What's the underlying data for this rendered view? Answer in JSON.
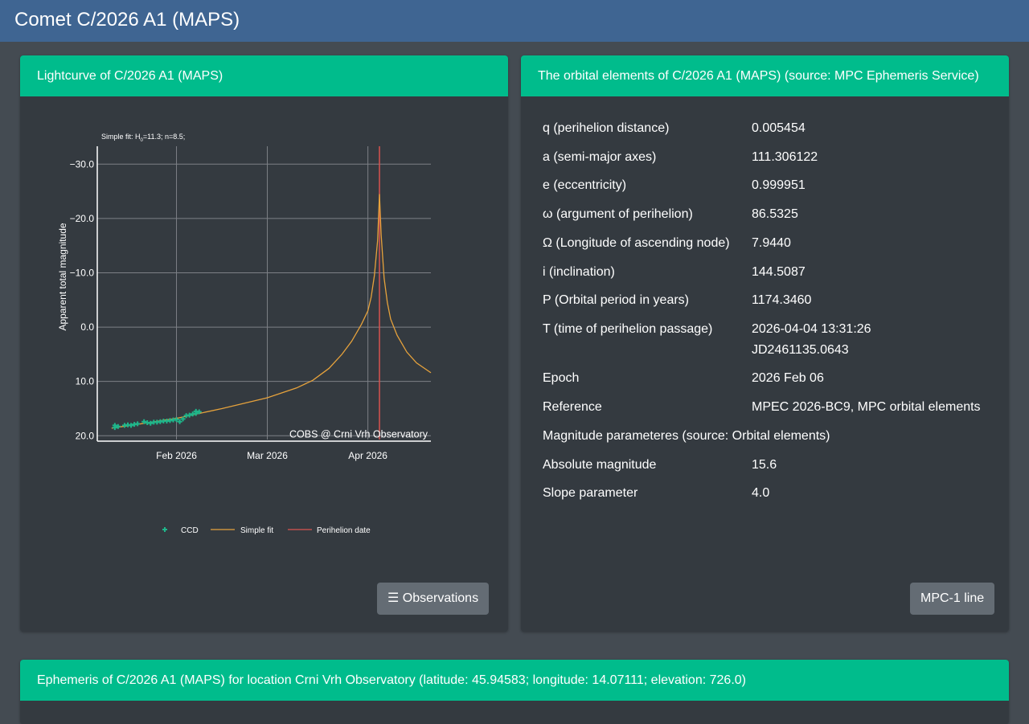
{
  "page_title": "Comet C/2026 A1 (MAPS)",
  "lightcurve": {
    "header": "Lightcurve of C/2026 A1 (MAPS)",
    "button_label": "Observations",
    "button_icon": "list-icon"
  },
  "orbital": {
    "header": "The orbital elements of C/2026 A1 (MAPS) (source: MPC Ephemeris Service)",
    "rows": [
      {
        "label": "q (perihelion distance)",
        "value": "0.005454"
      },
      {
        "label": "a (semi-major axes)",
        "value": "111.306122"
      },
      {
        "label": "e (eccentricity)",
        "value": "0.999951"
      },
      {
        "label": "ω (argument of perihelion)",
        "value": "86.5325"
      },
      {
        "label": "Ω (Longitude of ascending node)",
        "value": "7.9440"
      },
      {
        "label": "i (inclination)",
        "value": "144.5087"
      },
      {
        "label": "P (Orbital period in years)",
        "value": "1174.3460"
      },
      {
        "label": "T (time of perihelion passage)",
        "value": "2026-04-04 13:31:26",
        "value2": "JD2461135.0643"
      },
      {
        "label": "Epoch",
        "value": "2026 Feb 06"
      },
      {
        "label": "Reference",
        "value": "MPEC 2026-BC9, MPC orbital elements"
      },
      {
        "label": "Magnitude parameteres (source: Orbital elements)",
        "value": ""
      },
      {
        "label": "Absolute magnitude",
        "value": "15.6"
      },
      {
        "label": "Slope parameter",
        "value": "4.0"
      }
    ],
    "button_label": "MPC-1 line"
  },
  "ephemeris": {
    "header": "Ephemeris of C/2026 A1 (MAPS) for location Crni Vrh Observatory (latitude: 45.94583; longitude: 14.07111; elevation: 726.0)"
  },
  "chart_data": {
    "type": "scatter",
    "title_prefix": "Simple fit: H",
    "title_sub": "0",
    "title_suffix": "=11.3; n=8.5;",
    "ylabel": "Apparent total magnitude",
    "xlabel": "",
    "ylim": [
      20.7,
      -33.3
    ],
    "y_reversed": true,
    "xlim": [
      "2026-01-07T14:00",
      "2026-04-20T10:00"
    ],
    "yticks": [
      -30,
      -20,
      -10,
      0,
      10,
      20
    ],
    "ytick_labels": [
      "−30.0",
      "−20.0",
      "−10.0",
      "0.0",
      "10.0",
      "20.0"
    ],
    "xticks": [
      "2026-02-01",
      "2026-03-01",
      "2026-04-01"
    ],
    "xtick_labels": [
      "Feb 2026",
      "Mar 2026",
      "Apr 2026"
    ],
    "annotation": "COBS @ Crni Vrh Observatory",
    "grid": true,
    "legend_position": "bottom",
    "colors": {
      "ccd": "#1fb58a",
      "fit": "#e6a23c",
      "perihelion": "#d9534f",
      "grid": "#7d8086"
    },
    "series": [
      {
        "name": "CCD",
        "kind": "markers",
        "points": [
          [
            "2026-01-13",
            18.1
          ],
          [
            "2026-01-13",
            18.5
          ],
          [
            "2026-01-14",
            18.3
          ],
          [
            "2026-01-16",
            18.1
          ],
          [
            "2026-01-17",
            18.0
          ],
          [
            "2026-01-18",
            18.1
          ],
          [
            "2026-01-19",
            17.9
          ],
          [
            "2026-01-20",
            17.8
          ],
          [
            "2026-01-22",
            17.4
          ],
          [
            "2026-01-23",
            17.6
          ],
          [
            "2026-01-24",
            17.7
          ],
          [
            "2026-01-25",
            17.5
          ],
          [
            "2026-01-26",
            17.5
          ],
          [
            "2026-01-27",
            17.4
          ],
          [
            "2026-01-28",
            17.3
          ],
          [
            "2026-01-29",
            17.3
          ],
          [
            "2026-01-30",
            17.2
          ],
          [
            "2026-01-31",
            17.1
          ],
          [
            "2026-02-01",
            17.0
          ],
          [
            "2026-02-02",
            17.4
          ],
          [
            "2026-02-03",
            16.9
          ],
          [
            "2026-02-04",
            16.3
          ],
          [
            "2026-02-05",
            16.2
          ],
          [
            "2026-02-06",
            16.0
          ],
          [
            "2026-02-07",
            15.5
          ],
          [
            "2026-02-07",
            15.9
          ],
          [
            "2026-02-08",
            15.6
          ]
        ]
      },
      {
        "name": "Simple fit",
        "kind": "line",
        "points": [
          [
            "2026-01-12",
            18.6
          ],
          [
            "2026-01-20",
            17.9
          ],
          [
            "2026-02-01",
            16.8
          ],
          [
            "2026-02-15",
            15.0
          ],
          [
            "2026-03-01",
            13.0
          ],
          [
            "2026-03-10",
            11.2
          ],
          [
            "2026-03-15",
            9.8
          ],
          [
            "2026-03-20",
            7.6
          ],
          [
            "2026-03-24",
            5.0
          ],
          [
            "2026-03-27",
            2.6
          ],
          [
            "2026-03-30",
            -0.5
          ],
          [
            "2026-04-01",
            -3.0
          ],
          [
            "2026-04-02",
            -5.5
          ],
          [
            "2026-04-03",
            -9.5
          ],
          [
            "2026-04-04",
            -16.0
          ],
          [
            "2026-04-04T13:31",
            -24.5
          ],
          [
            "2026-04-05T02:00",
            -17.0
          ],
          [
            "2026-04-06",
            -9.0
          ],
          [
            "2026-04-07",
            -4.5
          ],
          [
            "2026-04-08",
            -1.5
          ],
          [
            "2026-04-10",
            1.5
          ],
          [
            "2026-04-13",
            4.6
          ],
          [
            "2026-04-16",
            6.6
          ],
          [
            "2026-04-20T10:00",
            8.4
          ]
        ]
      },
      {
        "name": "Perihelion date",
        "kind": "vline",
        "x": "2026-04-04T13:31"
      }
    ]
  }
}
